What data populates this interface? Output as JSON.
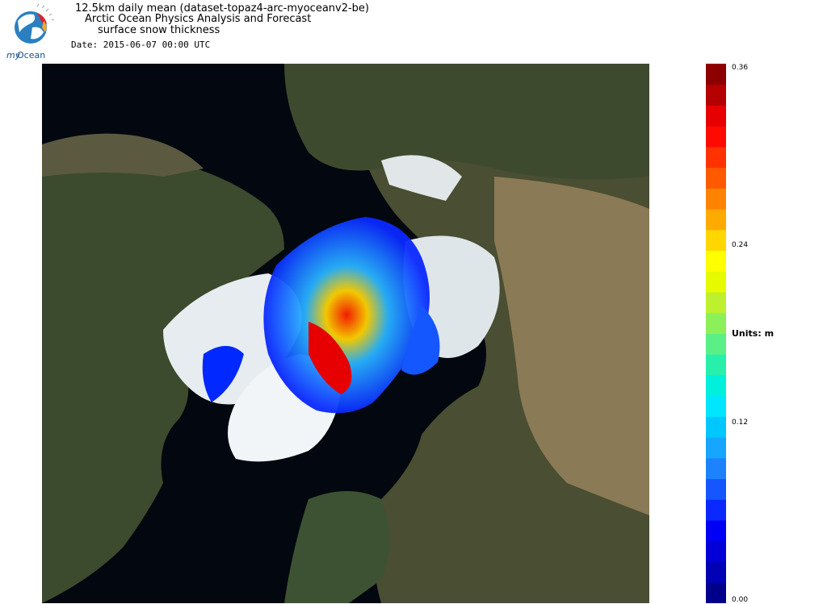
{
  "logo": {
    "text_my": "my",
    "text_ocean": "Ocean"
  },
  "header": {
    "title_line1": "12.5km daily mean (dataset-topaz4-arc-myoceanv2-be)",
    "title_line2": "Arctic Ocean Physics Analysis and Forecast",
    "title_line3": "surface snow thickness",
    "date_label": "Date: 2015-06-07 00:00 UTC"
  },
  "colorbar": {
    "units_label": "Units: m",
    "ticks": [
      "0.36",
      "0.24",
      "0.12",
      "0.00"
    ],
    "min": 0.0,
    "max": 0.36,
    "colors": [
      "#00008b",
      "#0000b4",
      "#0000d7",
      "#0000f5",
      "#0a28ff",
      "#1456ff",
      "#1e82ff",
      "#16a6ff",
      "#00c8ff",
      "#00e6ff",
      "#00f0dc",
      "#28f0aa",
      "#5af087",
      "#8cf05a",
      "#bef02d",
      "#e6fa00",
      "#ffff00",
      "#ffd700",
      "#ffaa00",
      "#ff8200",
      "#ff5a00",
      "#ff3200",
      "#ff0a00",
      "#e60000",
      "#b40000",
      "#8c0000"
    ]
  },
  "map": {
    "region": "Arctic polar stereographic",
    "ocean_color": "#02060f",
    "land_color": "#3b4a2c",
    "snow_ice_color": "#e8eef2"
  }
}
